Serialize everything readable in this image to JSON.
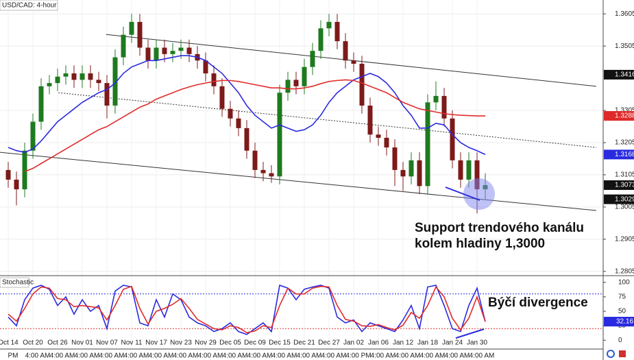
{
  "chart_data": {
    "type": "candlestick",
    "title": "USD/CAD: 4-hour",
    "categories": [
      "Oct 14",
      null,
      null,
      "Oct 20",
      null,
      null,
      "Oct 26",
      null,
      null,
      "Nov 01",
      null,
      null,
      "Nov 07",
      null,
      null,
      "Nov 11",
      null,
      null,
      "Nov 17",
      null,
      null,
      "Nov 23",
      null,
      null,
      "Nov 29",
      null,
      null,
      "Dec 05",
      null,
      null,
      "Dec 09",
      null,
      null,
      "Dec 15",
      null,
      null,
      "Dec 21",
      null,
      null,
      "Dec 27",
      null,
      null,
      "Jan 02",
      null,
      null,
      "Jan 06",
      null,
      null,
      "Jan 12",
      null,
      null,
      "Jan 18",
      null,
      null,
      "Jan 24",
      null,
      null,
      "Jan 30",
      null
    ],
    "time_labels": [
      "PM",
      null,
      null,
      "4:00 AM",
      null,
      null,
      "4:00 AM",
      null,
      null,
      "4:00 AM",
      null,
      null,
      "4:00 AM",
      null,
      null,
      "4:00 AM",
      null,
      null,
      "4:00 AM",
      null,
      null,
      "4:00 AM",
      null,
      null,
      "4:00 AM",
      null,
      null,
      "4:00 AM",
      null,
      null,
      "4:00 AM",
      null,
      null,
      "4:00 AM",
      null,
      null,
      "4:00 AM",
      null,
      null,
      "4:00 AM",
      null,
      null,
      "4:00 PM",
      null,
      null,
      "4:00 AM",
      null,
      null,
      "4:00 AM",
      null,
      null,
      "4:00 AM",
      null,
      null,
      "4:00 AM",
      null,
      null,
      "4:00 AM",
      null
    ],
    "ohlc": {
      "open": [
        1.312,
        1.309,
        1.306,
        1.318,
        1.327,
        1.338,
        1.339,
        1.341,
        1.342,
        1.34,
        1.342,
        1.34,
        1.339,
        1.332,
        1.347,
        1.354,
        1.358,
        1.35,
        1.346,
        1.35,
        1.348,
        1.349,
        1.35,
        1.348,
        1.346,
        1.342,
        1.338,
        1.331,
        1.328,
        1.325,
        1.318,
        1.312,
        1.311,
        1.31,
        1.336,
        1.34,
        1.338,
        1.344,
        1.349,
        1.356,
        1.358,
        1.352,
        1.346,
        1.345,
        1.332,
        1.323,
        1.322,
        1.319,
        1.312,
        1.31,
        1.315,
        1.307,
        1.333,
        1.335,
        1.328,
        1.315,
        1.309,
        1.315,
        1.306
      ],
      "high": [
        1.3145,
        1.3115,
        1.3205,
        1.3295,
        1.3405,
        1.3415,
        1.3435,
        1.3445,
        1.3445,
        1.3445,
        1.3445,
        1.3425,
        1.3415,
        1.3495,
        1.3565,
        1.3605,
        1.3605,
        1.3525,
        1.3525,
        1.3525,
        1.3515,
        1.3525,
        1.3525,
        1.3505,
        1.3485,
        1.3445,
        1.3405,
        1.3335,
        1.3305,
        1.3275,
        1.3205,
        1.3145,
        1.3135,
        1.3385,
        1.3425,
        1.3425,
        1.3465,
        1.3515,
        1.3585,
        1.3605,
        1.3605,
        1.3545,
        1.3485,
        1.3475,
        1.3345,
        1.3255,
        1.3245,
        1.3215,
        1.3145,
        1.3175,
        1.3175,
        1.3355,
        1.3395,
        1.3375,
        1.3305,
        1.3175,
        1.3175,
        1.3175,
        1.311
      ],
      "low": [
        1.3065,
        1.301,
        1.3035,
        1.3155,
        1.3245,
        1.3355,
        1.3365,
        1.3385,
        1.3375,
        1.3375,
        1.3375,
        1.3365,
        1.328,
        1.3295,
        1.3445,
        1.3515,
        1.3475,
        1.3435,
        1.3435,
        1.3455,
        1.3455,
        1.3465,
        1.3455,
        1.3435,
        1.3395,
        1.3355,
        1.3285,
        1.3255,
        1.3225,
        1.3155,
        1.3095,
        1.3085,
        1.308,
        1.3075,
        1.3335,
        1.3355,
        1.3355,
        1.3415,
        1.3465,
        1.3535,
        1.3495,
        1.3435,
        1.3425,
        1.3295,
        1.3205,
        1.3195,
        1.3165,
        1.307,
        1.3055,
        1.3075,
        1.3045,
        1.3045,
        1.3305,
        1.3255,
        1.3125,
        1.3065,
        1.3065,
        1.2985,
        1.303
      ],
      "close": [
        1.309,
        1.306,
        1.318,
        1.327,
        1.338,
        1.339,
        1.341,
        1.342,
        1.34,
        1.342,
        1.34,
        1.339,
        1.332,
        1.347,
        1.354,
        1.358,
        1.35,
        1.346,
        1.35,
        1.348,
        1.349,
        1.35,
        1.348,
        1.346,
        1.342,
        1.338,
        1.331,
        1.328,
        1.325,
        1.318,
        1.312,
        1.311,
        1.31,
        1.336,
        1.34,
        1.338,
        1.344,
        1.349,
        1.356,
        1.358,
        1.352,
        1.346,
        1.345,
        1.332,
        1.323,
        1.322,
        1.319,
        1.312,
        1.31,
        1.315,
        1.307,
        1.333,
        1.335,
        1.328,
        1.315,
        1.309,
        1.315,
        1.306,
        1.3073
      ]
    },
    "up_color": "#1e7a1e",
    "down_color": "#7d1a1a",
    "moving_averages": [
      {
        "color": "#2a2ae0",
        "values": [
          1.319,
          1.318,
          1.3175,
          1.3185,
          1.321,
          1.324,
          1.327,
          1.329,
          1.331,
          1.333,
          1.3345,
          1.336,
          1.337,
          1.339,
          1.342,
          1.344,
          1.345,
          1.346,
          1.346,
          1.3465,
          1.347,
          1.3475,
          1.3475,
          1.347,
          1.346,
          1.344,
          1.342,
          1.339,
          1.336,
          1.332,
          1.329,
          1.327,
          1.325,
          1.326,
          1.325,
          1.324,
          1.3245,
          1.326,
          1.329,
          1.333,
          1.336,
          1.338,
          1.34,
          1.341,
          1.342,
          1.341,
          1.339,
          1.336,
          1.332,
          1.329,
          1.325,
          1.325,
          1.3265,
          1.326,
          1.323,
          1.3205,
          1.319,
          1.318,
          1.3168
        ]
      },
      {
        "color": "#e02a2a",
        "values": [
          null,
          null,
          1.3115,
          1.3125,
          1.314,
          1.3155,
          1.317,
          1.3185,
          1.32,
          1.3215,
          1.323,
          1.3245,
          1.3255,
          1.327,
          1.3285,
          1.33,
          1.3315,
          1.3325,
          1.334,
          1.335,
          1.336,
          1.337,
          1.3378,
          1.3385,
          1.339,
          1.3395,
          1.3398,
          1.3398,
          1.3395,
          1.339,
          1.3385,
          1.338,
          1.3375,
          1.3375,
          1.3372,
          1.3372,
          1.3375,
          1.338,
          1.3388,
          1.3395,
          1.3398,
          1.34,
          1.3398,
          1.339,
          1.338,
          1.337,
          1.336,
          1.3345,
          1.333,
          1.332,
          1.331,
          1.3305,
          1.33,
          1.3295,
          1.3292,
          1.329,
          1.3289,
          1.3288,
          1.3288
        ]
      }
    ],
    "channels": [
      {
        "x": [
          11.9,
          71.5
        ],
        "y": [
          1.3541,
          1.338
        ],
        "dashed": false
      },
      {
        "x": [
          6.1,
          71.5
        ],
        "y": [
          1.336,
          1.319
        ],
        "dashed": true
      },
      {
        "x": [
          -1,
          71.5
        ],
        "y": [
          1.3175,
          1.2994
        ],
        "dashed": false
      }
    ],
    "ylim": [
      1.2796,
      1.3648
    ],
    "yticks": [
      1.3605,
      1.3505,
      1.3305,
      1.3205,
      1.3105,
      1.3005,
      1.2905,
      1.2805
    ],
    "price_labels": [
      {
        "value": 1.3416,
        "color": "#111111"
      },
      {
        "value": 1.3288,
        "color": "#e02a2a"
      },
      {
        "value": 1.3168,
        "color": "#2a2ae0"
      },
      {
        "value": 1.3073,
        "color": "#111111"
      },
      {
        "value": 1.3029,
        "color": "#111111"
      }
    ],
    "annotations": [
      "Support trendového kanálu",
      "kolem hladiny 1,3000",
      "Býčí divergence"
    ],
    "stochastic": {
      "title": "Stochastic",
      "ylim": [
        -14,
        108
      ],
      "yticks": [
        100,
        75,
        50,
        25,
        0
      ],
      "upper_band": 80,
      "lower_band": 20,
      "series": [
        {
          "color": "#2a2ae0",
          "values": [
            40,
            25,
            70,
            90,
            95,
            88,
            60,
            75,
            45,
            70,
            50,
            60,
            20,
            85,
            95,
            92,
            30,
            25,
            70,
            40,
            80,
            70,
            40,
            30,
            25,
            15,
            20,
            30,
            15,
            10,
            20,
            30,
            15,
            95,
            90,
            70,
            88,
            92,
            95,
            90,
            40,
            30,
            35,
            15,
            30,
            25,
            20,
            15,
            35,
            60,
            20,
            92,
            95,
            60,
            20,
            15,
            60,
            90,
            32.16
          ]
        },
        {
          "color": "#e02a2a",
          "values": [
            45,
            33,
            55,
            80,
            92,
            90,
            72,
            70,
            58,
            60,
            58,
            56,
            35,
            60,
            88,
            93,
            55,
            28,
            50,
            55,
            62,
            72,
            55,
            36,
            28,
            20,
            18,
            25,
            22,
            13,
            16,
            25,
            22,
            60,
            90,
            80,
            80,
            90,
            93,
            92,
            60,
            36,
            33,
            25,
            24,
            27,
            22,
            18,
            26,
            48,
            38,
            60,
            92,
            75,
            38,
            18,
            38,
            75,
            32
          ]
        }
      ],
      "last_label": {
        "value": 32.16,
        "color": "#2a2ae0"
      }
    }
  }
}
